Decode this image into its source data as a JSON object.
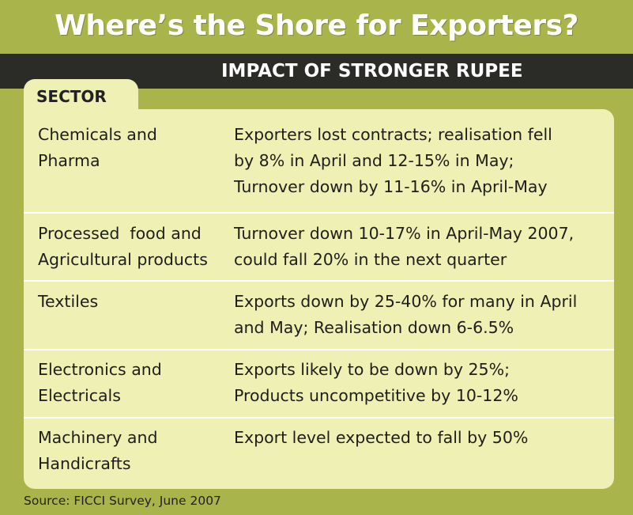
{
  "header": {
    "title": "Where’s the Shore for Exporters?",
    "subtitle": "IMPACT OF STRONGER RUPEE"
  },
  "table": {
    "column_header": "SECTOR",
    "rows": [
      {
        "sector_lines": [
          "Chemicals and",
          "Pharma"
        ],
        "impact_lines": [
          "Exporters lost contracts; realisation fell",
          "by 8% in April and 12-15% in May;",
          "Turnover down by 11-16% in April-May"
        ]
      },
      {
        "sector_lines": [
          "Processed  food and",
          "Agricultural products"
        ],
        "impact_lines": [
          "Turnover down 10-17% in April-May 2007,",
          "could fall 20% in the next quarter"
        ]
      },
      {
        "sector_lines": [
          "Textiles"
        ],
        "impact_lines": [
          "Exports down by 25-40% for many in April",
          "and May; Realisation down 6-6.5%"
        ]
      },
      {
        "sector_lines": [
          "Electronics and",
          "Electricals"
        ],
        "impact_lines": [
          "Exports likely to be down by 25%;",
          "Products uncompetitive by 10-12%"
        ]
      },
      {
        "sector_lines": [
          "Machinery and",
          "Handicrafts"
        ],
        "impact_lines": [
          "Export level expected to fall by 50%"
        ]
      }
    ]
  },
  "footer": {
    "source": "Source: FICCI Survey, June 2007"
  },
  "colors": {
    "background": "#a9b54a",
    "banner": "#2b2b27",
    "panel": "#eff0b3"
  }
}
